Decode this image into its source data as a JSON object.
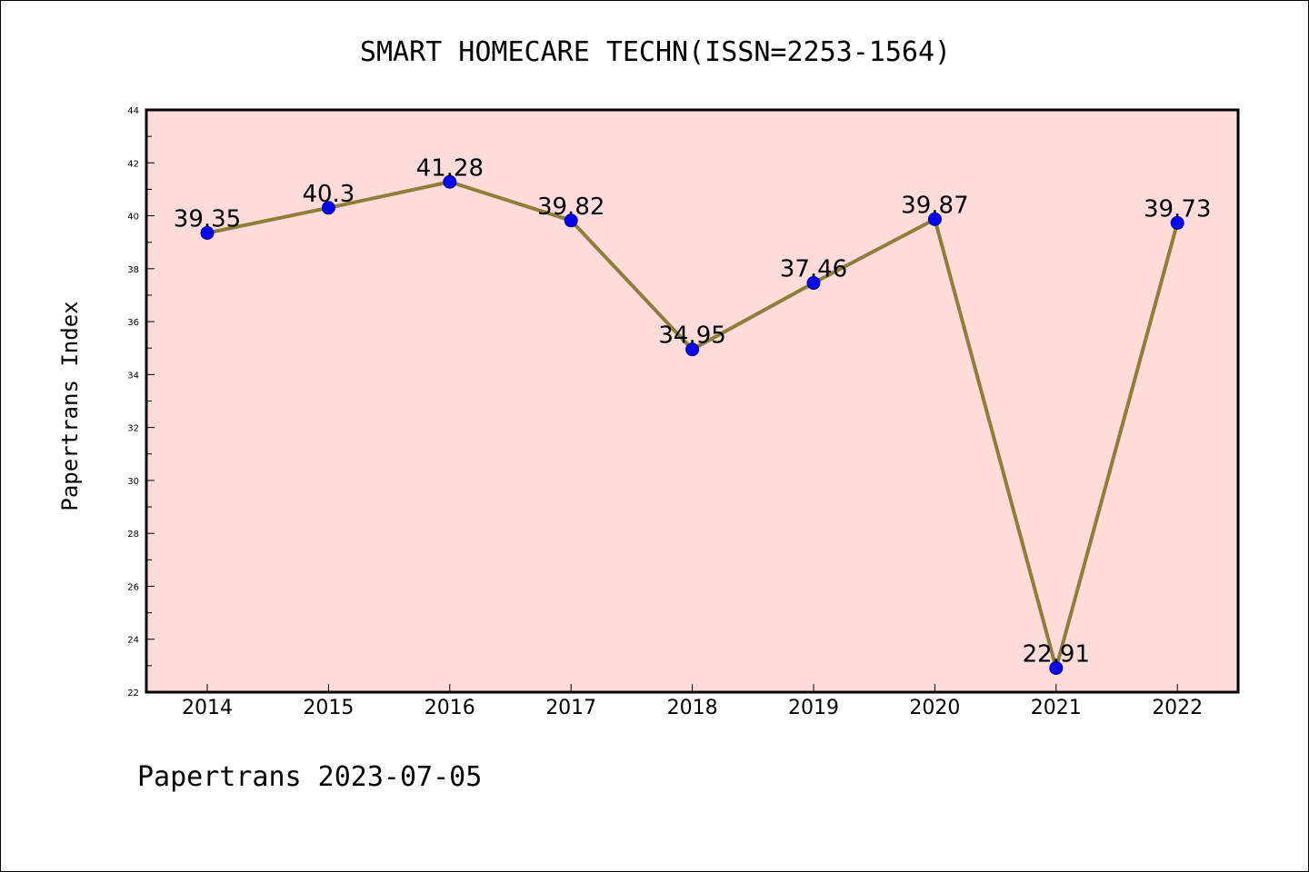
{
  "colors": {
    "plot_background": "#FDDCDA",
    "line": "#8F7E3A",
    "marker": "#0000FF",
    "marker_edge": "#00008B",
    "frame": "#000000"
  },
  "chart_data": {
    "type": "line",
    "title": "SMART HOMECARE TECHN(ISSN=2253-1564)",
    "xlabel": "",
    "ylabel": "Papertrans Index",
    "categories": [
      "2014",
      "2015",
      "2016",
      "2017",
      "2018",
      "2019",
      "2020",
      "2021",
      "2022"
    ],
    "series": [
      {
        "values": [
          39.35,
          40.3,
          41.28,
          39.82,
          34.95,
          37.46,
          39.87,
          22.91,
          39.73
        ],
        "value_labels": [
          "39.35",
          "40.3",
          "41.28",
          "39.82",
          "34.95",
          "37.46",
          "39.87",
          "22.91",
          "39.73"
        ]
      }
    ],
    "ylim": [
      22,
      44
    ],
    "yticks": [
      "22",
      "24",
      "26",
      "28",
      "30",
      "32",
      "34",
      "36",
      "38",
      "40",
      "42",
      "44"
    ],
    "grid": false,
    "legend": "none"
  },
  "footer": {
    "note": "Papertrans 2023-07-05"
  }
}
